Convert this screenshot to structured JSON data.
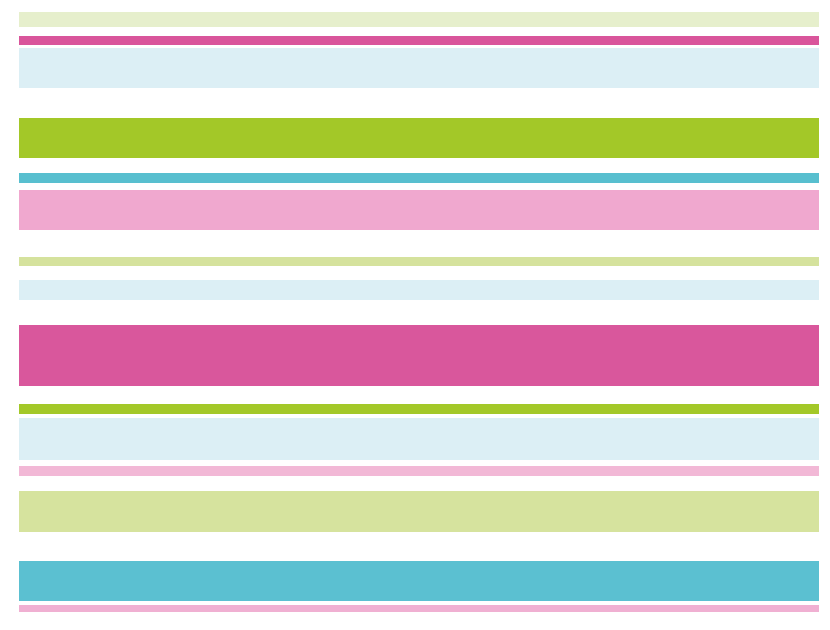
{
  "background_color": "#ffffff",
  "stripes": [
    {
      "name": "light-green",
      "color": "#e6efcc"
    },
    {
      "name": "magenta",
      "color": "#d9559b"
    },
    {
      "name": "light-blue",
      "color": "#dceff5"
    },
    {
      "name": "lime-green",
      "color": "#a3c828"
    },
    {
      "name": "cyan",
      "color": "#58bfcf"
    },
    {
      "name": "pink",
      "color": "#f0a8cf"
    },
    {
      "name": "pale-green",
      "color": "#d5e29d"
    },
    {
      "name": "light-blue",
      "color": "#dceff5"
    },
    {
      "name": "magenta",
      "color": "#d9579c"
    },
    {
      "name": "lime-green",
      "color": "#a3c828"
    },
    {
      "name": "light-blue",
      "color": "#dceff5"
    },
    {
      "name": "light-pink",
      "color": "#f2b8d6"
    },
    {
      "name": "pale-green",
      "color": "#d6e39e"
    },
    {
      "name": "cyan",
      "color": "#5bc0d1"
    },
    {
      "name": "pink",
      "color": "#f0b0d2"
    }
  ]
}
